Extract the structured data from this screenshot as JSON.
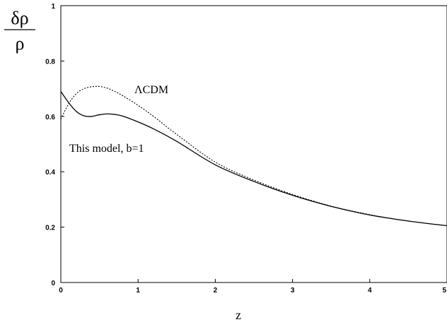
{
  "chart_data": {
    "type": "line",
    "title": "",
    "xlabel": "z",
    "ylabel_numerator": "δρ",
    "ylabel_denominator": "ρ",
    "xlim": [
      0,
      5
    ],
    "ylim": [
      0,
      1
    ],
    "x_ticks": [
      0,
      1,
      2,
      3,
      4,
      5
    ],
    "y_ticks": [
      0,
      0.2,
      0.4,
      0.6,
      0.8,
      1
    ],
    "x_tick_labels": [
      "0",
      "1",
      "2",
      "3",
      "4",
      "5"
    ],
    "y_tick_labels": [
      "0",
      "0.2",
      "0.4",
      "0.6",
      "0.8",
      "1"
    ],
    "grid": false,
    "legend": "none",
    "annotations": [
      {
        "text": "ΛCDM",
        "series": "dotted"
      },
      {
        "text": "This model, b=1",
        "series": "solid"
      }
    ],
    "series": [
      {
        "style": "dotted",
        "color": "#000000",
        "x": [
          0,
          0.1,
          0.2,
          0.3,
          0.4,
          0.5,
          0.6,
          0.7,
          0.8,
          1.0,
          1.2,
          1.5,
          2.0,
          2.5,
          3.0,
          3.5,
          4.0,
          4.5,
          5.0
        ],
        "y": [
          0.59,
          0.645,
          0.682,
          0.7,
          0.707,
          0.708,
          0.702,
          0.69,
          0.675,
          0.64,
          0.6,
          0.535,
          0.435,
          0.37,
          0.318,
          0.276,
          0.245,
          0.222,
          0.205
        ]
      },
      {
        "style": "solid",
        "color": "#000000",
        "x": [
          0,
          0.1,
          0.2,
          0.3,
          0.4,
          0.5,
          0.6,
          0.7,
          0.8,
          1.0,
          1.2,
          1.5,
          2.0,
          2.5,
          3.0,
          3.5,
          4.0,
          4.5,
          5.0
        ],
        "y": [
          0.69,
          0.65,
          0.618,
          0.602,
          0.6,
          0.606,
          0.609,
          0.607,
          0.601,
          0.58,
          0.555,
          0.51,
          0.425,
          0.365,
          0.315,
          0.275,
          0.244,
          0.222,
          0.205
        ]
      }
    ]
  }
}
